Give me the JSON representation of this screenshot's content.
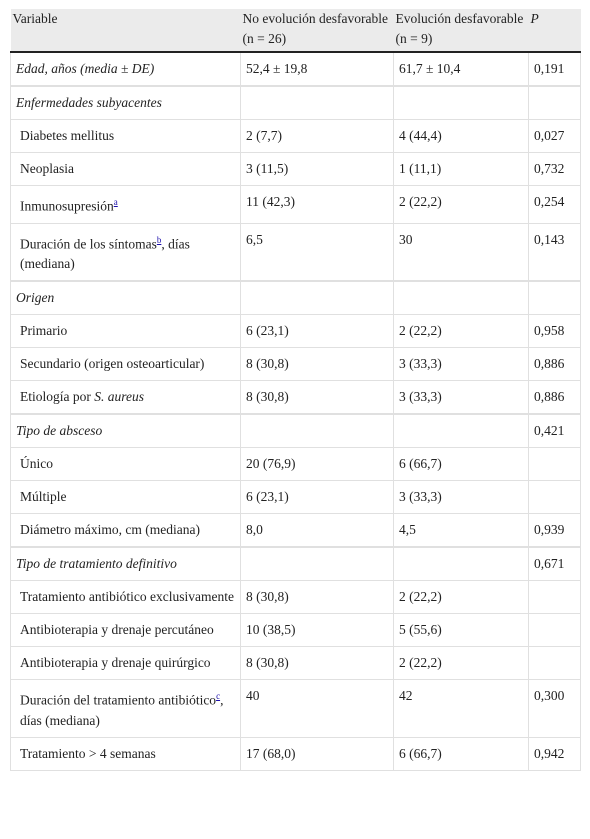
{
  "table": {
    "header": [
      "Variable",
      "No evolución desfavorable (n = 26)",
      "Evolución desfavorable (n = 9)",
      "P"
    ],
    "rows": [
      {
        "variable": "Edad, años (media ± DE)",
        "no": "52,4 ± 19,8",
        "yes": "61,7 ± 10,4",
        "p": "0,191"
      },
      {
        "variable": "Enfermedades subyacentes"
      },
      {
        "variable": "Diabetes mellitus",
        "no": "2 (7,7)",
        "yes": "4 (44,4)",
        "p": "0,027"
      },
      {
        "variable": "Neoplasia",
        "no": "3 (11,5)",
        "yes": "1 (11,1)",
        "p": "0,732"
      },
      {
        "variable": {
          "text": "Inmunosupresión",
          "note": "a"
        },
        "no": "11 (42,3)",
        "yes": "2 (22,2)",
        "p": "0,254"
      },
      {
        "variable": {
          "text": "Duración de los síntomas",
          "note": "b",
          "rest": ", días (mediana)"
        },
        "no": "6,5",
        "yes": "30",
        "p": "0,143"
      },
      {
        "variable": "Origen"
      },
      {
        "variable": "Primario",
        "no": "6 (23,1)",
        "yes": "2 (22,2)",
        "p": "0,958"
      },
      {
        "variable": "Secundario (origen osteoarticular)",
        "no": "8 (30,8)",
        "yes": "3 (33,3)",
        "p": "0,886"
      },
      {
        "variable": {
          "text": "Etiología por ",
          "italic": "S. aureus"
        },
        "no": "8 (30,8)",
        "yes": "3 (33,3)",
        "p": "0,886"
      },
      {
        "variable": "Tipo de absceso",
        "p": "0,421"
      },
      {
        "variable": "Único",
        "no": "20 (76,9)",
        "yes": "6 (66,7)"
      },
      {
        "variable": "Múltiple",
        "no": "6 (23,1)",
        "yes": "3 (33,3)"
      },
      {
        "variable": "Diámetro máximo, cm (mediana)",
        "no": "8,0",
        "yes": "4,5",
        "p": "0,939"
      },
      {
        "variable": "Tipo de tratamiento definitivo",
        "p": "0,671"
      },
      {
        "variable": "Tratamiento antibiótico exclusivamente",
        "no": "8 (30,8)",
        "yes": "2 (22,2)"
      },
      {
        "variable": "Antibioterapia y drenaje percutáneo",
        "no": "10 (38,5)",
        "yes": "5 (55,6)"
      },
      {
        "variable": "Antibioterapia y drenaje quirúrgico",
        "no": "8 (30,8)",
        "yes": "2 (22,2)"
      },
      {
        "variable": {
          "text": "Duración del tratamiento antibiótico",
          "note": "c",
          "rest": ", días (mediana)"
        },
        "no": "40",
        "yes": "42",
        "p": "0,300"
      },
      {
        "variable": "Tratamiento > 4 semanas",
        "no": "17 (68,0)",
        "yes": "6 (66,7)",
        "p": "0,942"
      }
    ]
  }
}
